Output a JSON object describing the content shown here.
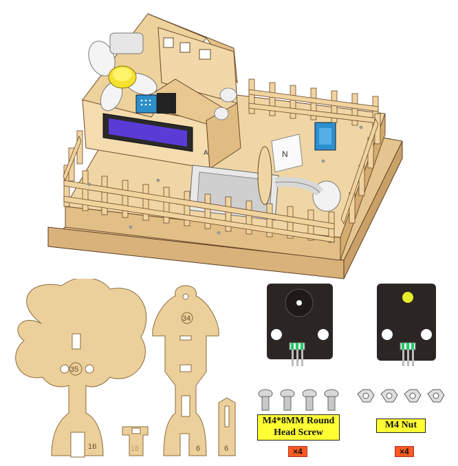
{
  "parts": {
    "tree_number": "35",
    "tree_base_number": "16",
    "connector_number": "16",
    "mushroom_number": "34",
    "mushroom_base_number": "6",
    "post_number": "6"
  },
  "house": {
    "sign_letter": "N",
    "side_letter": "A"
  },
  "screw": {
    "label_line1": "M4*8MM Round",
    "label_line2": "Head Screw",
    "quantity": "×4"
  },
  "nut": {
    "label": "M4 Nut",
    "quantity": "×4"
  },
  "colors": {
    "wood": "#e9c98d",
    "wood_dark": "#8a5a2b",
    "label_bg": "#ffff33",
    "qty_bg": "#ff5a1f",
    "module_board": "#2b2523"
  }
}
